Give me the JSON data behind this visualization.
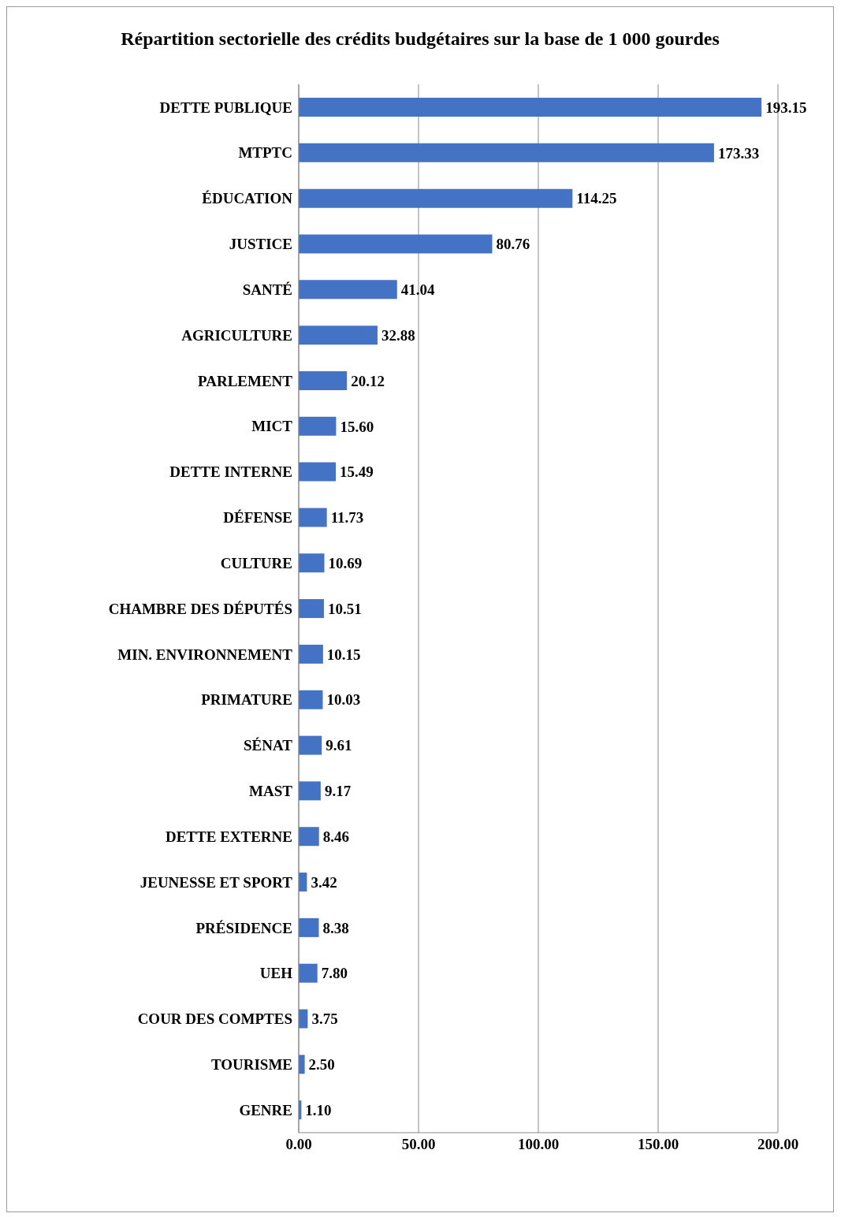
{
  "chart_data": {
    "type": "bar",
    "orientation": "horizontal",
    "title": "Répartition sectorielle des crédits budgétaires sur la base de 1 000 gourdes",
    "categories": [
      "DETTE PUBLIQUE",
      "MTPTC",
      "ÉDUCATION",
      "JUSTICE",
      "SANTÉ",
      "AGRICULTURE",
      "PARLEMENT",
      "MICT",
      "DETTE INTERNE",
      "DÉFENSE",
      "CULTURE",
      "CHAMBRE DES DÉPUTÉS",
      "MIN. ENVIRONNEMENT",
      "PRIMATURE",
      "SÉNAT",
      "MAST",
      "DETTE EXTERNE",
      "JEUNESSE ET SPORT",
      "PRÉSIDENCE",
      "UEH",
      "COUR DES COMPTES",
      "TOURISME",
      "GENRE"
    ],
    "values": [
      193.15,
      173.33,
      114.25,
      80.76,
      41.04,
      32.88,
      20.12,
      15.6,
      15.49,
      11.73,
      10.69,
      10.51,
      10.15,
      10.03,
      9.61,
      9.17,
      8.46,
      3.42,
      8.38,
      7.8,
      3.75,
      2.5,
      1.1
    ],
    "value_labels": [
      "193.15",
      "173.33",
      "114.25",
      "80.76",
      "41.04",
      "32.88",
      "20.12",
      "15.60",
      "15.49",
      "11.73",
      "10.69",
      "10.51",
      "10.15",
      "10.03",
      "9.61",
      "9.17",
      "8.46",
      "3.42",
      "8.38",
      "7.80",
      "3.75",
      "2.50",
      "1.10"
    ],
    "color": "#4472c4",
    "xlim": [
      0,
      200
    ],
    "xticks": [
      {
        "value": 0,
        "label": "0.00"
      },
      {
        "value": 50,
        "label": "50.00"
      },
      {
        "value": 100,
        "label": "100.00"
      },
      {
        "value": 150,
        "label": "150.00"
      },
      {
        "value": 200,
        "label": "200.00"
      }
    ],
    "grid": "x"
  }
}
